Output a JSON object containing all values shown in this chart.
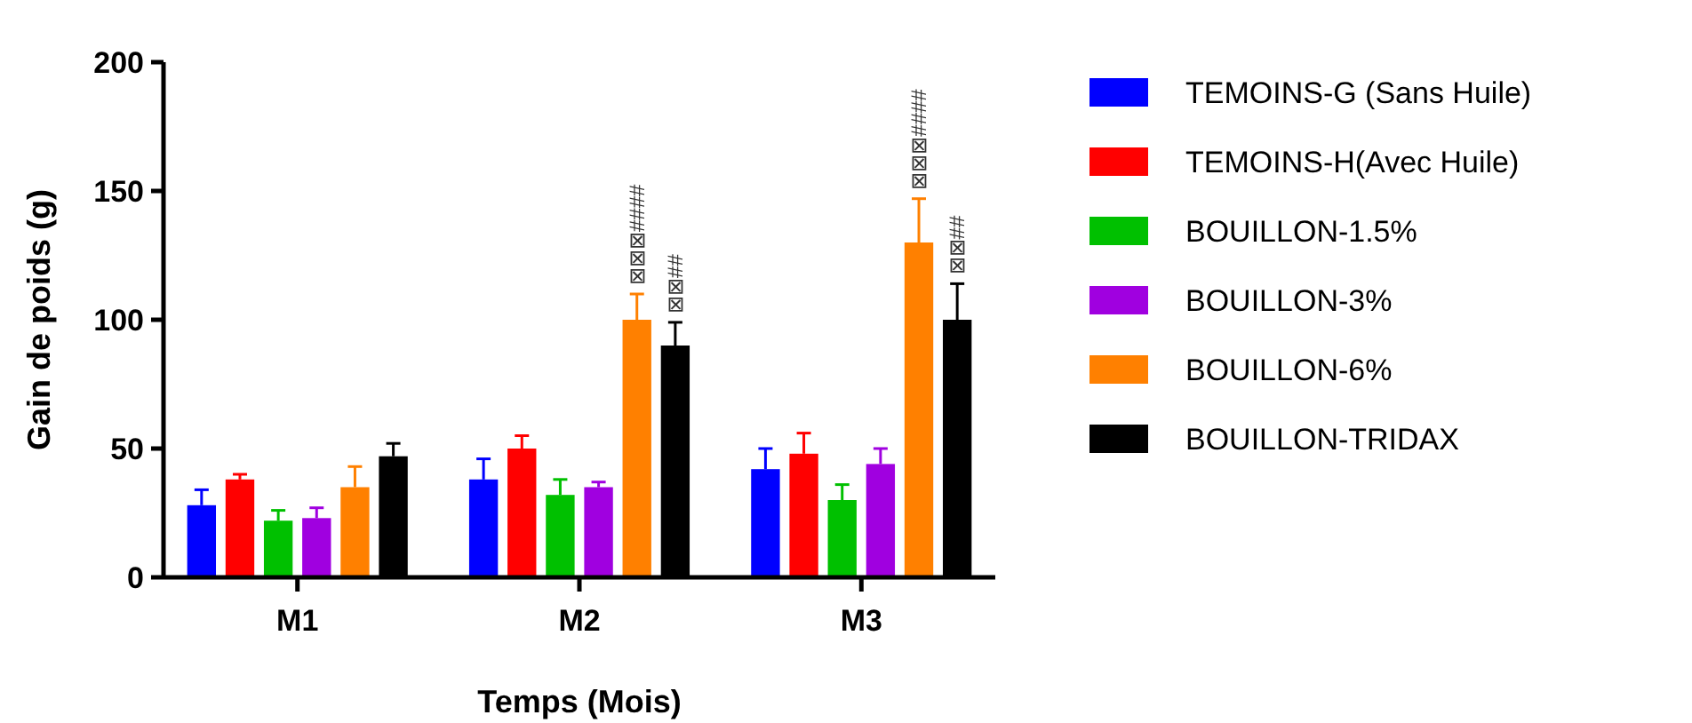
{
  "chart_data": {
    "type": "bar",
    "xlabel": "Temps (Mois)",
    "ylabel": "Gain de poids (g)",
    "categories": [
      "M1",
      "M2",
      "M3"
    ],
    "ylim": [
      0,
      200
    ],
    "yticks": [
      0,
      50,
      100,
      150,
      200
    ],
    "grid": false,
    "legend": "right",
    "series": [
      {
        "name": "TEMOINS-G (Sans Huile)",
        "color": "#0000ff",
        "values": [
          28,
          38,
          42
        ],
        "errors": [
          [
            28,
            34
          ],
          [
            38,
            46
          ],
          [
            42,
            50
          ]
        ]
      },
      {
        "name": "TEMOINS-H(Avec Huile)",
        "color": "#ff0000",
        "values": [
          38,
          50,
          48
        ],
        "errors": [
          [
            38,
            40
          ],
          [
            50,
            55
          ],
          [
            48,
            56
          ]
        ]
      },
      {
        "name": "BOUILLON-1.5%",
        "color": "#00c000",
        "values": [
          22,
          32,
          30
        ],
        "errors": [
          [
            22,
            26
          ],
          [
            32,
            38
          ],
          [
            30,
            36
          ]
        ]
      },
      {
        "name": "BOUILLON-3%",
        "color": "#a000e0",
        "values": [
          23,
          35,
          44
        ],
        "errors": [
          [
            23,
            27
          ],
          [
            35,
            37
          ],
          [
            44,
            50
          ]
        ]
      },
      {
        "name": "BOUILLON-6%",
        "color": "#ff8000",
        "values": [
          35,
          100,
          130
        ],
        "errors": [
          [
            35,
            43
          ],
          [
            100,
            110
          ],
          [
            130,
            147
          ]
        ],
        "value_labels": [
          null,
          "⊠⊠⊠####",
          "⊠⊠⊠####"
        ]
      },
      {
        "name": "BOUILLON-TRIDAX",
        "color": "#000000",
        "values": [
          47,
          90,
          100
        ],
        "errors": [
          [
            47,
            52
          ],
          [
            90,
            99
          ],
          [
            100,
            114
          ]
        ],
        "value_labels": [
          null,
          "⊠⊠##",
          "⊠⊠##"
        ]
      }
    ]
  }
}
